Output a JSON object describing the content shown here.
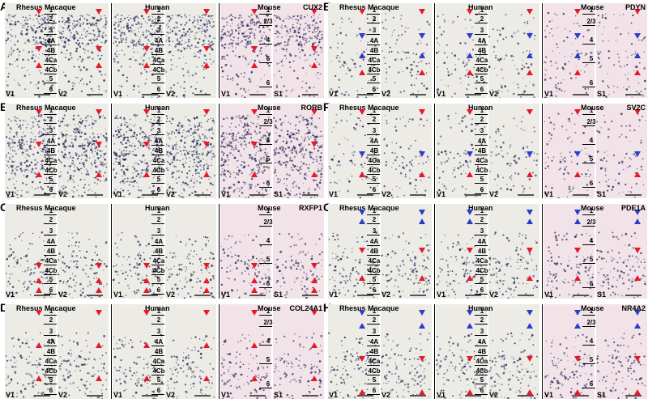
{
  "panels": [
    {
      "letter": "A",
      "gene": "CUX2",
      "species": [
        "Rhesus Macaque",
        "Human",
        "Mouse"
      ],
      "areas": [
        [
          "V1",
          "V2"
        ],
        [
          "V1",
          "V2"
        ],
        [
          "V1",
          "S1"
        ]
      ],
      "primate_layers": [
        "1",
        "2",
        "3",
        "4A",
        "4B",
        "4Ca",
        "4Cb",
        "5",
        "6"
      ],
      "mouse_layers": [
        "1",
        "2/3",
        "4",
        "5",
        "6"
      ],
      "stain": "dark-upper"
    },
    {
      "letter": "B",
      "gene": "RORB",
      "species": [
        "Rhesus Macaque",
        "Human",
        "Mouse"
      ],
      "areas": [
        [
          "V1",
          "V2"
        ],
        [
          "V1",
          "V2"
        ],
        [
          "V1",
          "S1"
        ]
      ],
      "primate_layers": [
        "1",
        "2",
        "3",
        "4A",
        "4B",
        "4Ca",
        "4Cb",
        "5",
        "6"
      ],
      "mouse_layers": [
        "1",
        "2/3",
        "4",
        "5",
        "6"
      ],
      "stain": "dark-all"
    },
    {
      "letter": "C",
      "gene": "RXFP1",
      "species": [
        "Rhesus Macaque",
        "Human",
        "Mouse"
      ],
      "areas": [
        [
          "V1",
          "V2"
        ],
        [
          "V1",
          "V2"
        ],
        [
          "V1",
          "S1"
        ]
      ],
      "primate_layers": [
        "1",
        "2",
        "3",
        "4A",
        "4B",
        "4Ca",
        "4Cb",
        "5",
        "6"
      ],
      "mouse_layers": [
        "1",
        "2/3",
        "4",
        "5",
        "6"
      ],
      "stain": "light-deep"
    },
    {
      "letter": "D",
      "gene": "COL24A1",
      "species": [
        "Rhesus Macaque",
        "Human",
        "Mouse"
      ],
      "areas": [
        [
          "V1",
          "V2"
        ],
        [
          "V1",
          "V2"
        ],
        [
          "V1",
          "S1"
        ]
      ],
      "primate_layers": [
        "1",
        "2",
        "3",
        "4A",
        "4B",
        "4Ca",
        "4Cb",
        "5",
        "6"
      ],
      "mouse_layers": [
        "1",
        "2/3",
        "4",
        "5",
        "6"
      ],
      "stain": "light-deep"
    },
    {
      "letter": "E",
      "gene": "PDYN",
      "species": [
        "Rhesus Macaque",
        "Human",
        "Mouse"
      ],
      "areas": [
        [
          "V1",
          "V2"
        ],
        [
          "V1",
          "V2"
        ],
        [
          "V1",
          "S1"
        ]
      ],
      "primate_layers": [
        "1",
        "2",
        "3",
        "4A",
        "4B",
        "4Ca",
        "4Cb",
        "5",
        "6"
      ],
      "mouse_layers": [
        "1",
        "2/3",
        "4",
        "5",
        "6"
      ],
      "stain": "sparse"
    },
    {
      "letter": "F",
      "gene": "SV2C",
      "species": [
        "Rhesus Macaque",
        "Human",
        "Mouse"
      ],
      "areas": [
        [
          "V1",
          "V2"
        ],
        [
          "V1",
          "V2"
        ],
        [
          "V1",
          "S1"
        ]
      ],
      "primate_layers": [
        "1",
        "2",
        "3",
        "4A",
        "4B",
        "4Ca",
        "4Cb",
        "5",
        "6"
      ],
      "mouse_layers": [
        "1",
        "2/3",
        "4",
        "5",
        "6"
      ],
      "stain": "sparse"
    },
    {
      "letter": "G",
      "gene": "PDE1A",
      "species": [
        "Rhesus Macaque",
        "Human",
        "Mouse"
      ],
      "areas": [
        [
          "V1",
          "V2"
        ],
        [
          "V1",
          "V2"
        ],
        [
          "V1",
          "S1"
        ]
      ],
      "primate_layers": [
        "1",
        "2",
        "3",
        "4A",
        "4B",
        "4Ca",
        "4Cb",
        "5",
        "6"
      ],
      "mouse_layers": [
        "1",
        "2/3",
        "4",
        "5",
        "6"
      ],
      "stain": "light-deep"
    },
    {
      "letter": "H",
      "gene": "NR4A2",
      "species": [
        "Rhesus Macaque",
        "Human",
        "Mouse"
      ],
      "areas": [
        [
          "V1",
          "V2"
        ],
        [
          "V1",
          "V2"
        ],
        [
          "V1",
          "S1"
        ]
      ],
      "primate_layers": [
        "1",
        "2",
        "3",
        "4A",
        "4B",
        "4Ca",
        "4Cb",
        "5",
        "6"
      ],
      "mouse_layers": [
        "1",
        "2/3",
        "4",
        "5",
        "6"
      ],
      "stain": "light-deep"
    }
  ],
  "colors": {
    "marker_red": "#e8182a",
    "marker_blue": "#2a3ec8",
    "stain": "#2a2a5a",
    "tissue_primate": "#ecebe6",
    "tissue_mouse": "#f1e3e8"
  }
}
